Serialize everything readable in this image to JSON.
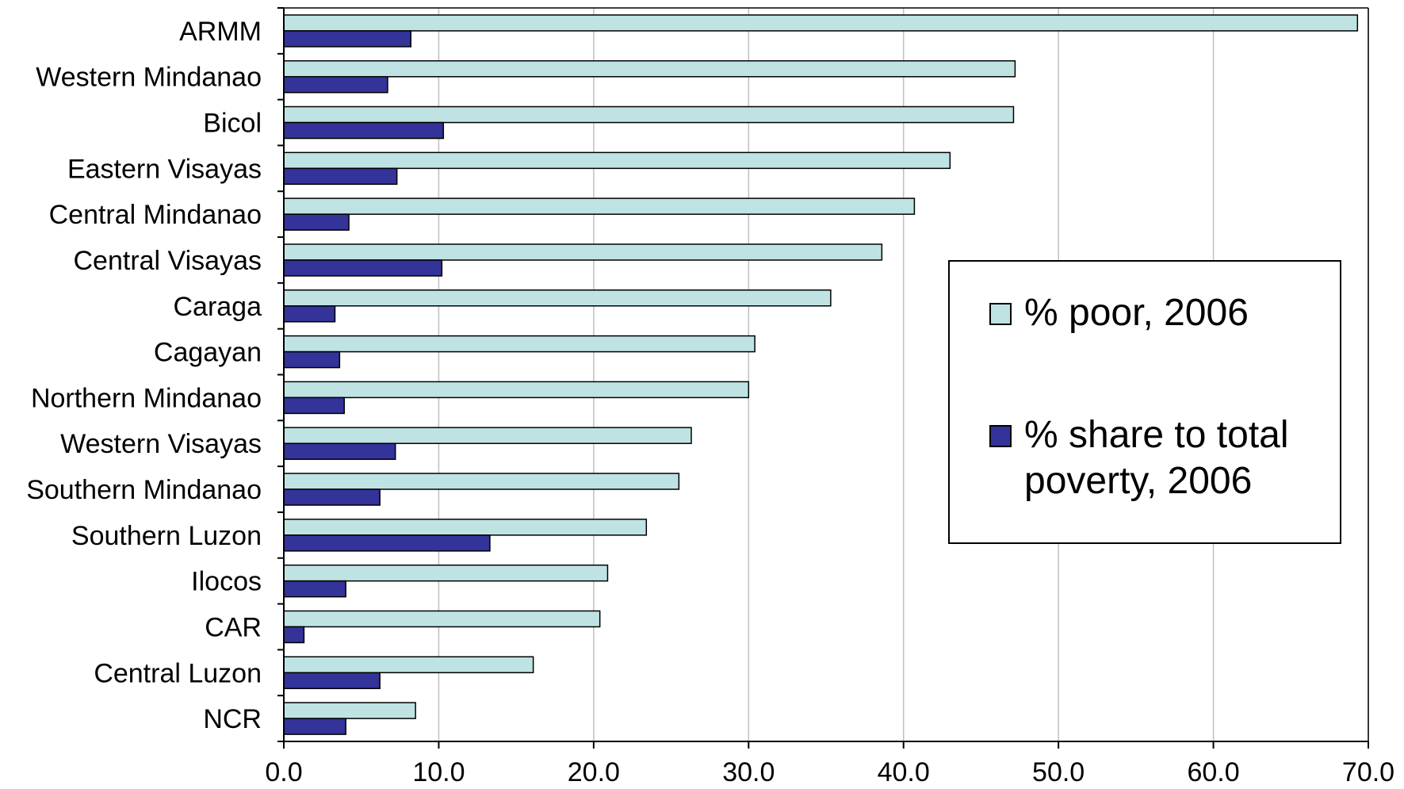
{
  "chart_data": {
    "type": "bar",
    "orientation": "horizontal",
    "categories": [
      "ARMM",
      "Western Mindanao",
      "Bicol",
      "Eastern Visayas",
      "Central Mindanao",
      "Central Visayas",
      "Caraga",
      "Cagayan",
      "Northern Mindanao",
      "Western Visayas",
      "Southern Mindanao",
      "Southern Luzon",
      "Ilocos",
      "CAR",
      "Central Luzon",
      "NCR"
    ],
    "series": [
      {
        "name": "% poor, 2006",
        "color": "#bfe3e3",
        "values": [
          69.3,
          47.2,
          47.1,
          43.0,
          40.7,
          38.6,
          35.3,
          30.4,
          30.0,
          26.3,
          25.5,
          23.4,
          20.9,
          20.4,
          16.1,
          8.5
        ]
      },
      {
        "name": "% share to total poverty, 2006",
        "color": "#333399",
        "values": [
          8.2,
          6.7,
          10.3,
          7.3,
          4.2,
          10.2,
          3.3,
          3.6,
          3.9,
          7.2,
          6.2,
          13.3,
          4.0,
          1.3,
          6.2,
          4.0
        ]
      }
    ],
    "xlim": [
      0,
      70
    ],
    "xticks": [
      "0.0",
      "10.0",
      "20.0",
      "30.0",
      "40.0",
      "50.0",
      "60.0",
      "70.0"
    ],
    "grid": true,
    "legend_position": "right"
  }
}
